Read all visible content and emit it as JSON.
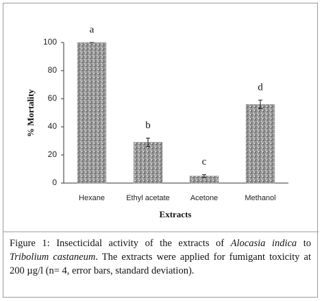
{
  "chart_data": {
    "type": "bar",
    "categories": [
      "Hexane",
      "Ethyl acetate",
      "Acetone",
      "Methanol"
    ],
    "values": [
      100,
      29,
      5,
      56
    ],
    "errors": [
      0,
      3,
      1,
      3
    ],
    "annotations": [
      "a",
      "b",
      "c",
      "d"
    ],
    "color": "#9a9a9a",
    "ylim": [
      0,
      100
    ],
    "yticks": [
      0,
      20,
      40,
      60,
      80,
      100
    ],
    "ylabel": "% Mortality",
    "xlabel": "Extracts"
  },
  "caption": {
    "label": "Figure 1:",
    "segments": [
      {
        "text": " Insecticidal activity of the extracts of "
      },
      {
        "text": "Alocasia indica",
        "italic": true
      },
      {
        "text": " to "
      },
      {
        "text": "Tribolium castaneum",
        "italic": true
      },
      {
        "text": ". The extracts were applied for fumigant toxicity at 200 µg/l (n= 4, error bars, standard deviation)."
      }
    ]
  }
}
